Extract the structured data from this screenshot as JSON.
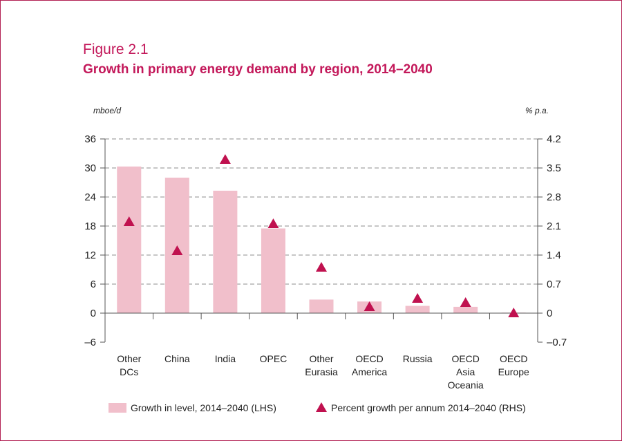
{
  "figure": {
    "label": "Figure 2.1",
    "title": "Growth in primary energy demand by region, 2014–2040"
  },
  "colors": {
    "frame": "#b21f52",
    "title": "#c3185a",
    "bar": "#f1bfcb",
    "marker": "#c0114f",
    "grid": "#8c8c8c",
    "axis": "#555555"
  },
  "chart_data": {
    "type": "bar",
    "categories": [
      [
        "Other",
        "DCs"
      ],
      [
        "China"
      ],
      [
        "India"
      ],
      [
        "OPEC"
      ],
      [
        "Other",
        "Eurasia"
      ],
      [
        "OECD",
        "America"
      ],
      [
        "Russia"
      ],
      [
        "OECD",
        "Asia",
        "Oceania"
      ],
      [
        "OECD",
        "Europe"
      ]
    ],
    "series": [
      {
        "name": "Growth in level, 2014–2040 (LHS)",
        "kind": "bar",
        "axis": "left",
        "values": [
          30.3,
          28.0,
          25.3,
          17.5,
          2.8,
          2.4,
          1.5,
          1.3,
          0.1
        ]
      },
      {
        "name": "Percent growth per annum 2014–2040 (RHS)",
        "kind": "marker",
        "marker": "triangle",
        "axis": "right",
        "values": [
          2.2,
          1.5,
          3.7,
          2.15,
          1.1,
          0.15,
          0.35,
          0.25,
          0.0
        ]
      }
    ],
    "left_axis": {
      "unit_label": "mboe/d",
      "ylim": [
        -6,
        36
      ],
      "ticks": [
        36,
        30,
        24,
        18,
        12,
        6,
        0,
        -6
      ],
      "tick_labels": [
        "36",
        "30",
        "24",
        "18",
        "12",
        "6",
        "0",
        "–6"
      ]
    },
    "right_axis": {
      "unit_label": "% p.a.",
      "ylim": [
        -0.7,
        4.2
      ],
      "ticks": [
        4.2,
        3.5,
        2.8,
        2.1,
        1.4,
        0.7,
        0,
        -0.7
      ],
      "tick_labels": [
        "4.2",
        "3.5",
        "2.8",
        "2.1",
        "1.4",
        "0.7",
        "0",
        "–0.7"
      ]
    },
    "grid": "dashed horizontal",
    "legend_position": "bottom"
  }
}
